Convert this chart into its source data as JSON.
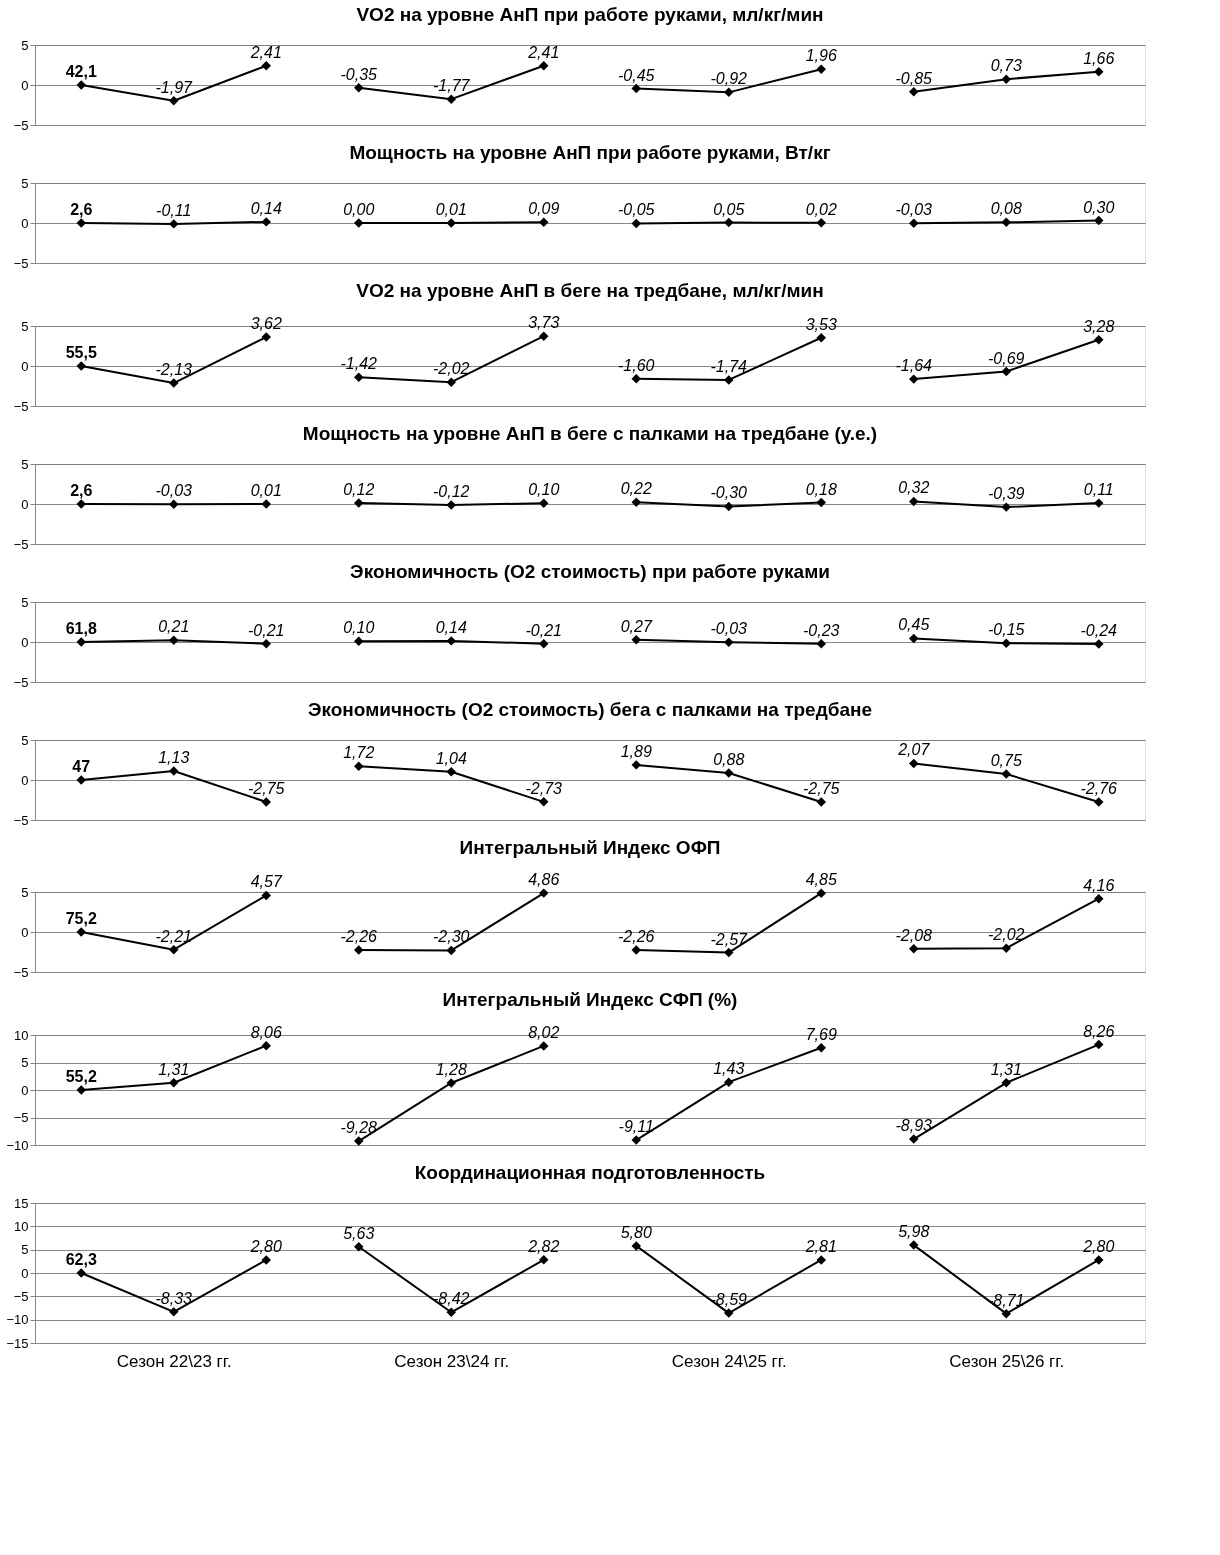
{
  "chart_data": [
    {
      "type": "line",
      "title": "VO2 на уровне АнП при работе руками, мл/кг/мин",
      "annotations": [
        "42,1"
      ],
      "categories": [
        null,
        null,
        null,
        null,
        null,
        null,
        null,
        null,
        null,
        null,
        null,
        null
      ],
      "ylim": [
        -5,
        5
      ],
      "yticks": [
        -5,
        0,
        5
      ],
      "grid": "y",
      "marker": "diamond",
      "tick_labels": "y",
      "series": [
        {
          "color": "#000000",
          "values": [
            0,
            -1.97,
            2.41,
            null,
            null,
            null,
            null,
            null,
            null,
            null,
            null,
            null
          ],
          "value_labels": [
            null,
            "-1,97",
            "2,41",
            null,
            null,
            null,
            null,
            null,
            null,
            null,
            null,
            null
          ]
        },
        {
          "color": "#000000",
          "values": [
            null,
            null,
            null,
            -0.35,
            -1.77,
            2.41,
            null,
            null,
            null,
            null,
            null,
            null
          ],
          "value_labels": [
            null,
            null,
            null,
            "-0,35",
            "-1,77",
            "2,41",
            null,
            null,
            null,
            null,
            null,
            null
          ]
        },
        {
          "color": "#000000",
          "values": [
            null,
            null,
            null,
            null,
            null,
            null,
            -0.45,
            -0.92,
            1.96,
            null,
            null,
            null
          ],
          "value_labels": [
            null,
            null,
            null,
            null,
            null,
            null,
            "-0,45",
            "-0,92",
            "1,96",
            null,
            null,
            null
          ]
        },
        {
          "color": "#000000",
          "values": [
            null,
            null,
            null,
            null,
            null,
            null,
            null,
            null,
            null,
            -0.85,
            0.73,
            1.66
          ],
          "value_labels": [
            null,
            null,
            null,
            null,
            null,
            null,
            null,
            null,
            null,
            "-0,85",
            "0,73",
            "1,66"
          ]
        }
      ]
    },
    {
      "type": "line",
      "title": "Мощность на уровне АнП при работе руками, Вт/кг",
      "annotations": [
        "2,6"
      ],
      "categories": [
        null,
        null,
        null,
        null,
        null,
        null,
        null,
        null,
        null,
        null,
        null,
        null
      ],
      "ylim": [
        -5,
        5
      ],
      "yticks": [
        -5,
        0,
        5
      ],
      "grid": "y",
      "marker": "diamond",
      "tick_labels": "y",
      "series": [
        {
          "color": "#000000",
          "values": [
            0,
            -0.11,
            0.14,
            null,
            null,
            null,
            null,
            null,
            null,
            null,
            null,
            null
          ],
          "value_labels": [
            null,
            "-0,11",
            "0,14",
            null,
            null,
            null,
            null,
            null,
            null,
            null,
            null,
            null
          ]
        },
        {
          "color": "#000000",
          "values": [
            null,
            null,
            null,
            0.0,
            0.01,
            0.09,
            null,
            null,
            null,
            null,
            null,
            null
          ],
          "value_labels": [
            null,
            null,
            null,
            "0,00",
            "0,01",
            "0,09",
            null,
            null,
            null,
            null,
            null,
            null
          ]
        },
        {
          "color": "#000000",
          "values": [
            null,
            null,
            null,
            null,
            null,
            null,
            -0.05,
            0.05,
            0.02,
            null,
            null,
            null
          ],
          "value_labels": [
            null,
            null,
            null,
            null,
            null,
            null,
            "-0,05",
            "0,05",
            "0,02",
            null,
            null,
            null
          ]
        },
        {
          "color": "#000000",
          "values": [
            null,
            null,
            null,
            null,
            null,
            null,
            null,
            null,
            null,
            -0.03,
            0.08,
            0.3
          ],
          "value_labels": [
            null,
            null,
            null,
            null,
            null,
            null,
            null,
            null,
            null,
            "-0,03",
            "0,08",
            "0,30"
          ]
        }
      ]
    },
    {
      "type": "line",
      "title": "VO2 на уровне АнП в беге на тредбане, мл/кг/мин",
      "annotations": [
        "55,5"
      ],
      "categories": [
        null,
        null,
        null,
        null,
        null,
        null,
        null,
        null,
        null,
        null,
        null,
        null
      ],
      "ylim": [
        -5,
        5
      ],
      "yticks": [
        -5,
        0,
        5
      ],
      "grid": "y",
      "marker": "diamond",
      "tick_labels": "y",
      "series": [
        {
          "color": "#000000",
          "values": [
            0,
            -2.13,
            3.62,
            null,
            null,
            null,
            null,
            null,
            null,
            null,
            null,
            null
          ],
          "value_labels": [
            null,
            "-2,13",
            "3,62",
            null,
            null,
            null,
            null,
            null,
            null,
            null,
            null,
            null
          ]
        },
        {
          "color": "#000000",
          "values": [
            null,
            null,
            null,
            -1.42,
            -2.02,
            3.73,
            null,
            null,
            null,
            null,
            null,
            null
          ],
          "value_labels": [
            null,
            null,
            null,
            "-1,42",
            "-2,02",
            "3,73",
            null,
            null,
            null,
            null,
            null,
            null
          ]
        },
        {
          "color": "#000000",
          "values": [
            null,
            null,
            null,
            null,
            null,
            null,
            -1.6,
            -1.74,
            3.53,
            null,
            null,
            null
          ],
          "value_labels": [
            null,
            null,
            null,
            null,
            null,
            null,
            "-1,60",
            "-1,74",
            "3,53",
            null,
            null,
            null
          ]
        },
        {
          "color": "#000000",
          "values": [
            null,
            null,
            null,
            null,
            null,
            null,
            null,
            null,
            null,
            -1.64,
            -0.69,
            3.28
          ],
          "value_labels": [
            null,
            null,
            null,
            null,
            null,
            null,
            null,
            null,
            null,
            "-1,64",
            "-0,69",
            "3,28"
          ]
        }
      ]
    },
    {
      "type": "line",
      "title": "Мощность на уровне АнП в беге с палками на тредбане (у.е.)",
      "annotations": [
        "2,6"
      ],
      "categories": [
        null,
        null,
        null,
        null,
        null,
        null,
        null,
        null,
        null,
        null,
        null,
        null
      ],
      "ylim": [
        -5,
        5
      ],
      "yticks": [
        -5,
        0,
        5
      ],
      "grid": "y",
      "marker": "diamond",
      "tick_labels": "y",
      "series": [
        {
          "color": "#000000",
          "values": [
            0,
            -0.03,
            0.01,
            null,
            null,
            null,
            null,
            null,
            null,
            null,
            null,
            null
          ],
          "value_labels": [
            null,
            "-0,03",
            "0,01",
            null,
            null,
            null,
            null,
            null,
            null,
            null,
            null,
            null
          ]
        },
        {
          "color": "#000000",
          "values": [
            null,
            null,
            null,
            0.12,
            -0.12,
            0.1,
            null,
            null,
            null,
            null,
            null,
            null
          ],
          "value_labels": [
            null,
            null,
            null,
            "0,12",
            "-0,12",
            "0,10",
            null,
            null,
            null,
            null,
            null,
            null
          ]
        },
        {
          "color": "#000000",
          "values": [
            null,
            null,
            null,
            null,
            null,
            null,
            0.22,
            -0.3,
            0.18,
            null,
            null,
            null
          ],
          "value_labels": [
            null,
            null,
            null,
            null,
            null,
            null,
            "0,22",
            "-0,30",
            "0,18",
            null,
            null,
            null
          ]
        },
        {
          "color": "#000000",
          "values": [
            null,
            null,
            null,
            null,
            null,
            null,
            null,
            null,
            null,
            0.32,
            -0.39,
            0.11
          ],
          "value_labels": [
            null,
            null,
            null,
            null,
            null,
            null,
            null,
            null,
            null,
            "0,32",
            "-0,39",
            "0,11"
          ]
        }
      ]
    },
    {
      "type": "line",
      "title": "Экономичность (О2 стоимость) при работе руками",
      "annotations": [
        "61,8"
      ],
      "categories": [
        null,
        null,
        null,
        null,
        null,
        null,
        null,
        null,
        null,
        null,
        null,
        null
      ],
      "ylim": [
        -5,
        5
      ],
      "yticks": [
        -5,
        0,
        5
      ],
      "grid": "y",
      "marker": "diamond",
      "tick_labels": "y",
      "series": [
        {
          "color": "#000000",
          "values": [
            0,
            0.21,
            -0.21,
            null,
            null,
            null,
            null,
            null,
            null,
            null,
            null,
            null
          ],
          "value_labels": [
            null,
            "0,21",
            "-0,21",
            null,
            null,
            null,
            null,
            null,
            null,
            null,
            null,
            null
          ]
        },
        {
          "color": "#000000",
          "values": [
            null,
            null,
            null,
            0.1,
            0.14,
            -0.21,
            null,
            null,
            null,
            null,
            null,
            null
          ],
          "value_labels": [
            null,
            null,
            null,
            "0,10",
            "0,14",
            "-0,21",
            null,
            null,
            null,
            null,
            null,
            null
          ]
        },
        {
          "color": "#000000",
          "values": [
            null,
            null,
            null,
            null,
            null,
            null,
            0.27,
            -0.03,
            -0.23,
            null,
            null,
            null
          ],
          "value_labels": [
            null,
            null,
            null,
            null,
            null,
            null,
            "0,27",
            "-0,03",
            "-0,23",
            null,
            null,
            null
          ]
        },
        {
          "color": "#000000",
          "values": [
            null,
            null,
            null,
            null,
            null,
            null,
            null,
            null,
            null,
            0.45,
            -0.15,
            -0.24
          ],
          "value_labels": [
            null,
            null,
            null,
            null,
            null,
            null,
            null,
            null,
            null,
            "0,45",
            "-0,15",
            "-0,24"
          ]
        }
      ]
    },
    {
      "type": "line",
      "title": "Экономичность (О2 стоимость) бега с палками на тредбане",
      "annotations": [
        "47"
      ],
      "categories": [
        null,
        null,
        null,
        null,
        null,
        null,
        null,
        null,
        null,
        null,
        null,
        null
      ],
      "ylim": [
        -5,
        5
      ],
      "yticks": [
        -5,
        0,
        5
      ],
      "grid": "y",
      "marker": "diamond",
      "tick_labels": "y",
      "series": [
        {
          "color": "#000000",
          "values": [
            0,
            1.13,
            -2.75,
            null,
            null,
            null,
            null,
            null,
            null,
            null,
            null,
            null
          ],
          "value_labels": [
            null,
            "1,13",
            "-2,75",
            null,
            null,
            null,
            null,
            null,
            null,
            null,
            null,
            null
          ]
        },
        {
          "color": "#000000",
          "values": [
            null,
            null,
            null,
            1.72,
            1.04,
            -2.73,
            null,
            null,
            null,
            null,
            null,
            null
          ],
          "value_labels": [
            null,
            null,
            null,
            "1,72",
            "1,04",
            "-2,73",
            null,
            null,
            null,
            null,
            null,
            null
          ]
        },
        {
          "color": "#000000",
          "values": [
            null,
            null,
            null,
            null,
            null,
            null,
            1.89,
            0.88,
            -2.75,
            null,
            null,
            null
          ],
          "value_labels": [
            null,
            null,
            null,
            null,
            null,
            null,
            "1,89",
            "0,88",
            "-2,75",
            null,
            null,
            null
          ]
        },
        {
          "color": "#000000",
          "values": [
            null,
            null,
            null,
            null,
            null,
            null,
            null,
            null,
            null,
            2.07,
            0.75,
            -2.76
          ],
          "value_labels": [
            null,
            null,
            null,
            null,
            null,
            null,
            null,
            null,
            null,
            "2,07",
            "0,75",
            "-2,76"
          ]
        }
      ]
    },
    {
      "type": "line",
      "title": "Интегральный  Индекс ОФП",
      "annotations": [
        "75,2"
      ],
      "categories": [
        null,
        null,
        null,
        null,
        null,
        null,
        null,
        null,
        null,
        null,
        null,
        null
      ],
      "ylim": [
        -5,
        5
      ],
      "yticks": [
        -5,
        0,
        5
      ],
      "grid": "y",
      "marker": "diamond",
      "tick_labels": "y",
      "series": [
        {
          "color": "#000000",
          "values": [
            0,
            -2.21,
            4.57,
            null,
            null,
            null,
            null,
            null,
            null,
            null,
            null,
            null
          ],
          "value_labels": [
            null,
            "-2,21",
            "4,57",
            null,
            null,
            null,
            null,
            null,
            null,
            null,
            null,
            null
          ]
        },
        {
          "color": "#000000",
          "values": [
            null,
            null,
            null,
            -2.26,
            -2.3,
            4.86,
            null,
            null,
            null,
            null,
            null,
            null
          ],
          "value_labels": [
            null,
            null,
            null,
            "-2,26",
            "-2,30",
            "4,86",
            null,
            null,
            null,
            null,
            null,
            null
          ]
        },
        {
          "color": "#000000",
          "values": [
            null,
            null,
            null,
            null,
            null,
            null,
            -2.26,
            -2.57,
            4.85,
            null,
            null,
            null
          ],
          "value_labels": [
            null,
            null,
            null,
            null,
            null,
            null,
            "-2,26",
            "-2,57",
            "4,85",
            null,
            null,
            null
          ]
        },
        {
          "color": "#000000",
          "values": [
            null,
            null,
            null,
            null,
            null,
            null,
            null,
            null,
            null,
            -2.08,
            -2.02,
            4.16
          ],
          "value_labels": [
            null,
            null,
            null,
            null,
            null,
            null,
            null,
            null,
            null,
            "-2,08",
            "-2,02",
            "4,16"
          ]
        }
      ]
    },
    {
      "type": "line",
      "title": "Интегральный  Индекс СФП (%)",
      "annotations": [
        "55,2"
      ],
      "categories": [
        null,
        null,
        null,
        null,
        null,
        null,
        null,
        null,
        null,
        null,
        null,
        null
      ],
      "ylim": [
        -10,
        10
      ],
      "yticks": [
        -10,
        -5,
        0,
        5,
        10
      ],
      "grid": "y",
      "marker": "diamond",
      "tick_labels": "y",
      "series": [
        {
          "color": "#000000",
          "values": [
            0,
            1.31,
            8.06,
            null,
            null,
            null,
            null,
            null,
            null,
            null,
            null,
            null
          ],
          "value_labels": [
            null,
            "1,31",
            "8,06",
            null,
            null,
            null,
            null,
            null,
            null,
            null,
            null,
            null
          ]
        },
        {
          "color": "#000000",
          "values": [
            null,
            null,
            null,
            -9.28,
            1.28,
            8.02,
            null,
            null,
            null,
            null,
            null,
            null
          ],
          "value_labels": [
            null,
            null,
            null,
            "-9,28",
            "1,28",
            "8,02",
            null,
            null,
            null,
            null,
            null,
            null
          ]
        },
        {
          "color": "#000000",
          "values": [
            null,
            null,
            null,
            null,
            null,
            null,
            -9.11,
            1.43,
            7.69,
            null,
            null,
            null
          ],
          "value_labels": [
            null,
            null,
            null,
            null,
            null,
            null,
            "-9,11",
            "1,43",
            "7,69",
            null,
            null,
            null
          ]
        },
        {
          "color": "#000000",
          "values": [
            null,
            null,
            null,
            null,
            null,
            null,
            null,
            null,
            null,
            -8.93,
            1.31,
            8.26
          ],
          "value_labels": [
            null,
            null,
            null,
            null,
            null,
            null,
            null,
            null,
            null,
            "-8,93",
            "1,31",
            "8,26"
          ]
        }
      ]
    },
    {
      "type": "line",
      "title": "Координационная подготовленность",
      "annotations": [
        "62,3"
      ],
      "categories": [
        null,
        "Сезон 22\\23 гг.",
        null,
        null,
        "Сезон 23\\24 гг.",
        null,
        null,
        "Сезон 24\\25 гг.",
        null,
        null,
        "Сезон 25\\26 гг.",
        null
      ],
      "ylim": [
        -15,
        15
      ],
      "yticks": [
        -15,
        -10,
        -5,
        0,
        5,
        10,
        15
      ],
      "grid": "y",
      "marker": "diamond",
      "series": [
        {
          "color": "#000000",
          "values": [
            0,
            -8.33,
            2.8,
            null,
            null,
            null,
            null,
            null,
            null,
            null,
            null,
            null
          ],
          "value_labels": [
            null,
            "-8,33",
            "2,80",
            null,
            null,
            null,
            null,
            null,
            null,
            null,
            null,
            null
          ]
        },
        {
          "color": "#000000",
          "values": [
            null,
            null,
            null,
            5.63,
            -8.42,
            2.82,
            null,
            null,
            null,
            null,
            null,
            null
          ],
          "value_labels": [
            null,
            null,
            null,
            "5,63",
            "-8,42",
            "2,82",
            null,
            null,
            null,
            null,
            null,
            null
          ]
        },
        {
          "color": "#000000",
          "values": [
            null,
            null,
            null,
            null,
            null,
            null,
            5.8,
            -8.59,
            2.81,
            null,
            null,
            null
          ],
          "value_labels": [
            null,
            null,
            null,
            null,
            null,
            null,
            "5,80",
            "-8,59",
            "2,81",
            null,
            null,
            null
          ]
        },
        {
          "color": "#000000",
          "values": [
            null,
            null,
            null,
            null,
            null,
            null,
            null,
            null,
            null,
            5.98,
            -8.71,
            2.8
          ],
          "value_labels": [
            null,
            null,
            null,
            null,
            null,
            null,
            null,
            null,
            null,
            "5,98",
            "-8,71",
            "2,80"
          ]
        }
      ]
    }
  ]
}
